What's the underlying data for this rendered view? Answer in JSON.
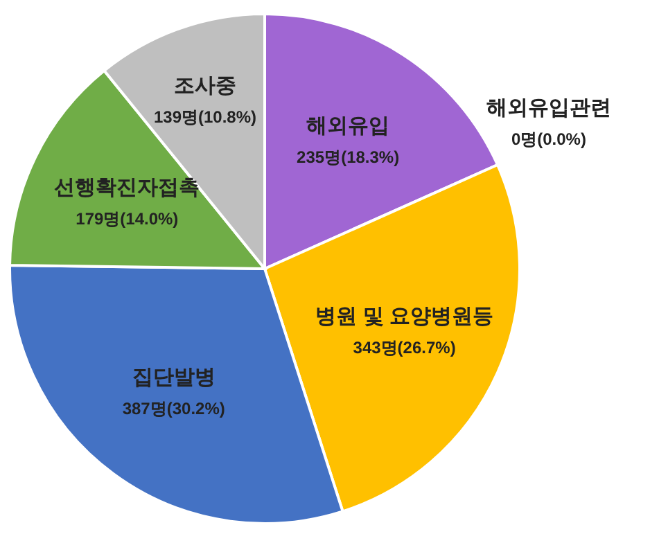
{
  "chart_data": {
    "type": "pie",
    "categories": [
      "해외유입",
      "해외유입관련",
      "병원 및 요양병원등",
      "집단발병",
      "선행확진자접촉",
      "조사중"
    ],
    "values": [
      235,
      0,
      343,
      387,
      179,
      139
    ],
    "value_labels": [
      "235명(18.3%)",
      "0명(0.0%)",
      "343명(26.7%)",
      "387명(30.2%)",
      "179명(14.0%)",
      "139명(10.8%)"
    ],
    "colors": [
      "#a066d3",
      null,
      "#ffc000",
      "#4472c4",
      "#70ad47",
      "#bfbfbf"
    ]
  }
}
